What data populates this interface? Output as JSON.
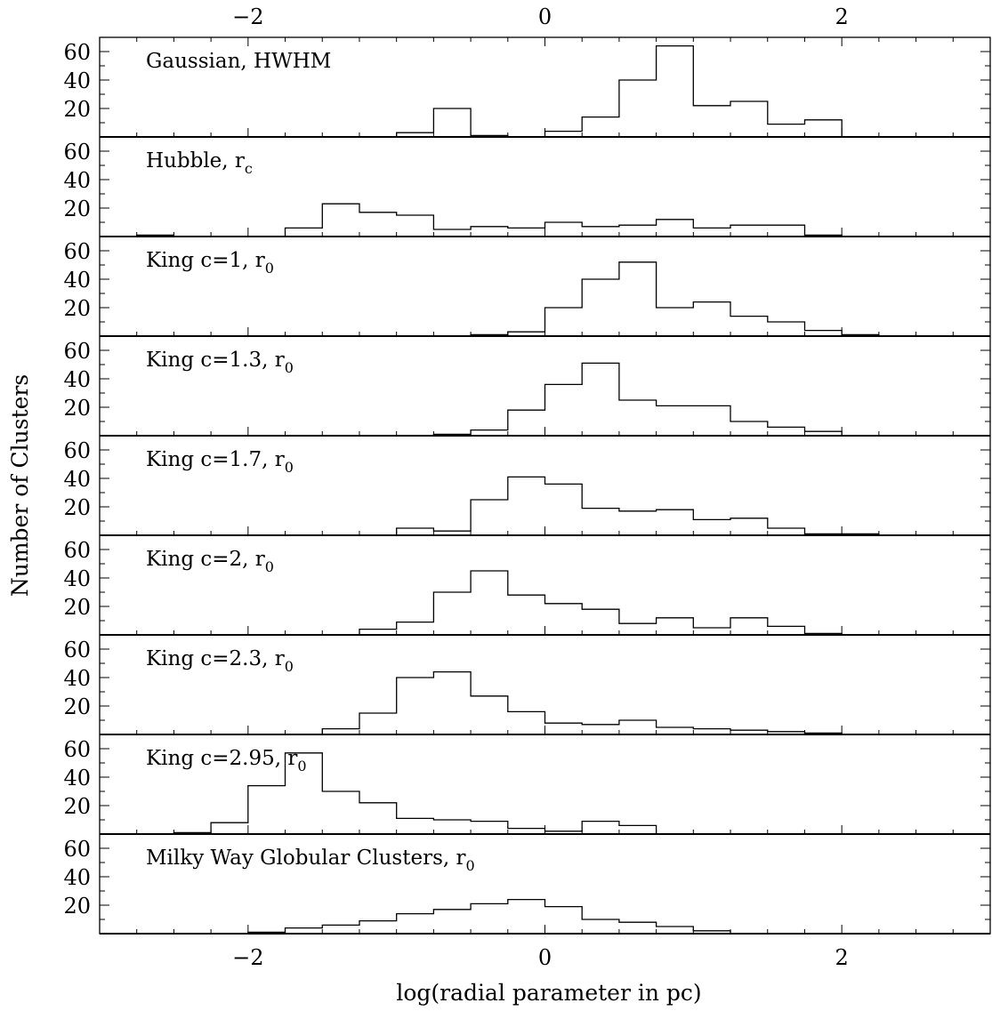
{
  "chart_data": {
    "type": "histogram-stack",
    "xlabel": "log(radial parameter in pc)",
    "ylabel": "Number of Clusters",
    "xlim": [
      -3,
      3
    ],
    "ylim": [
      0,
      70
    ],
    "x_ticks": [
      -2,
      0,
      2
    ],
    "x_tick_labels": [
      "−2",
      "0",
      "2"
    ],
    "y_ticks": [
      20,
      40,
      60
    ],
    "y_tick_labels": [
      "20",
      "40",
      "60"
    ],
    "grid": false,
    "bins": [
      -2.75,
      -2.5,
      -2.25,
      -2.0,
      -1.75,
      -1.5,
      -1.25,
      -1.0,
      -0.75,
      -0.5,
      -0.25,
      0.0,
      0.25,
      0.5,
      0.75,
      1.0,
      1.25,
      1.5,
      1.75,
      2.0,
      2.25
    ],
    "panels": [
      {
        "label": "Gaussian, HWHM",
        "label_sub": "",
        "counts": [
          0,
          0,
          0,
          0,
          0,
          0,
          0,
          3,
          20,
          1,
          0,
          4,
          14,
          40,
          64,
          22,
          25,
          9,
          12,
          0
        ]
      },
      {
        "label": "Hubble, r",
        "label_sub": "c",
        "counts": [
          1,
          0,
          0,
          0,
          6,
          23,
          17,
          15,
          5,
          7,
          6,
          10,
          7,
          8,
          12,
          6,
          8,
          8,
          1,
          0
        ]
      },
      {
        "label": "King c=1, r",
        "label_sub": "0",
        "counts": [
          0,
          0,
          0,
          0,
          0,
          0,
          0,
          0,
          0,
          1,
          3,
          20,
          40,
          52,
          20,
          24,
          14,
          10,
          4,
          1
        ]
      },
      {
        "label": "King c=1.3, r",
        "label_sub": "0",
        "counts": [
          0,
          0,
          0,
          0,
          0,
          0,
          0,
          0,
          1,
          4,
          18,
          36,
          51,
          25,
          21,
          21,
          10,
          6,
          3,
          0
        ]
      },
      {
        "label": "King c=1.7, r",
        "label_sub": "0",
        "counts": [
          0,
          0,
          0,
          0,
          0,
          0,
          0,
          5,
          3,
          25,
          41,
          36,
          19,
          17,
          18,
          11,
          12,
          5,
          1,
          1
        ]
      },
      {
        "label": "King c=2, r",
        "label_sub": "0",
        "counts": [
          0,
          0,
          0,
          0,
          0,
          0,
          4,
          9,
          30,
          45,
          28,
          22,
          18,
          8,
          12,
          5,
          12,
          6,
          1,
          0
        ]
      },
      {
        "label": "King c=2.3, r",
        "label_sub": "0",
        "counts": [
          0,
          0,
          0,
          0,
          0,
          4,
          15,
          40,
          44,
          27,
          16,
          8,
          7,
          10,
          5,
          4,
          3,
          2,
          1,
          0
        ]
      },
      {
        "label": "King c=2.95, r",
        "label_sub": "0",
        "counts": [
          0,
          1,
          8,
          34,
          57,
          30,
          22,
          11,
          10,
          9,
          4,
          2,
          9,
          6,
          0,
          0,
          0,
          0,
          0,
          0
        ]
      },
      {
        "label": "Milky Way Globular Clusters, r",
        "label_sub": "0",
        "counts": [
          0,
          0,
          0,
          1,
          4,
          6,
          9,
          14,
          17,
          21,
          24,
          19,
          10,
          8,
          5,
          2,
          0,
          0,
          0,
          0
        ]
      }
    ]
  }
}
